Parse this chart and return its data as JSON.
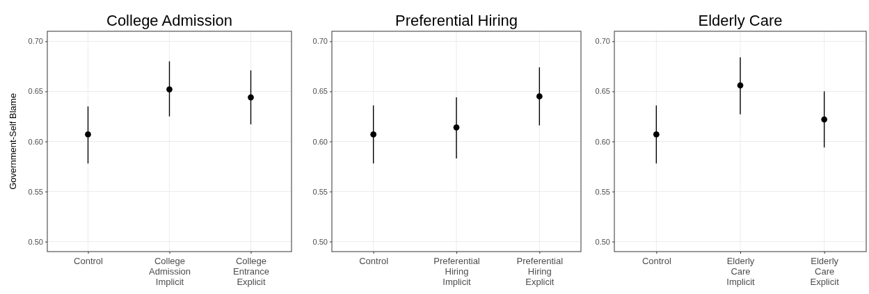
{
  "chart_data": [
    {
      "type": "scatter",
      "title": "College Admission",
      "ylabel": "Government-Self Blame",
      "categories": [
        "Control",
        "College Admission Implicit",
        "College Entrance Explicit"
      ],
      "values": [
        0.607,
        0.652,
        0.644
      ],
      "errors": [
        [
          0.578,
          0.635
        ],
        [
          0.625,
          0.68
        ],
        [
          0.617,
          0.671
        ]
      ],
      "color": "#000000",
      "marker": "circle",
      "ylim": [
        0.49,
        0.71
      ],
      "yticks": [
        {
          "value": 0.5,
          "label": "0.50"
        },
        {
          "value": 0.55,
          "label": "0.55"
        },
        {
          "value": 0.6,
          "label": "0.60"
        },
        {
          "value": 0.65,
          "label": "0.65"
        },
        {
          "value": 0.7,
          "label": "0.70"
        }
      ],
      "grid": true
    },
    {
      "type": "scatter",
      "title": "Preferential Hiring",
      "categories": [
        "Control",
        "Preferential Hiring Implicit",
        "Preferential Hiring Explicit"
      ],
      "values": [
        0.607,
        0.614,
        0.645
      ],
      "errors": [
        [
          0.578,
          0.636
        ],
        [
          0.583,
          0.644
        ],
        [
          0.616,
          0.674
        ]
      ],
      "color": "#000000",
      "marker": "circle",
      "ylim": [
        0.49,
        0.71
      ],
      "yticks": [
        {
          "value": 0.5,
          "label": "0.50"
        },
        {
          "value": 0.55,
          "label": "0.55"
        },
        {
          "value": 0.6,
          "label": "0.60"
        },
        {
          "value": 0.65,
          "label": "0.65"
        },
        {
          "value": 0.7,
          "label": "0.70"
        }
      ],
      "grid": true
    },
    {
      "type": "scatter",
      "title": "Elderly Care",
      "categories": [
        "Control",
        "Elderly Care Implicit",
        "Elderly Care Explicit"
      ],
      "values": [
        0.607,
        0.656,
        0.622
      ],
      "errors": [
        [
          0.578,
          0.636
        ],
        [
          0.627,
          0.684
        ],
        [
          0.594,
          0.65
        ]
      ],
      "color": "#000000",
      "marker": "circle",
      "ylim": [
        0.49,
        0.71
      ],
      "yticks": [
        {
          "value": 0.5,
          "label": "0.50"
        },
        {
          "value": 0.55,
          "label": "0.55"
        },
        {
          "value": 0.6,
          "label": "0.60"
        },
        {
          "value": 0.65,
          "label": "0.65"
        },
        {
          "value": 0.7,
          "label": "0.70"
        }
      ],
      "grid": true
    }
  ]
}
